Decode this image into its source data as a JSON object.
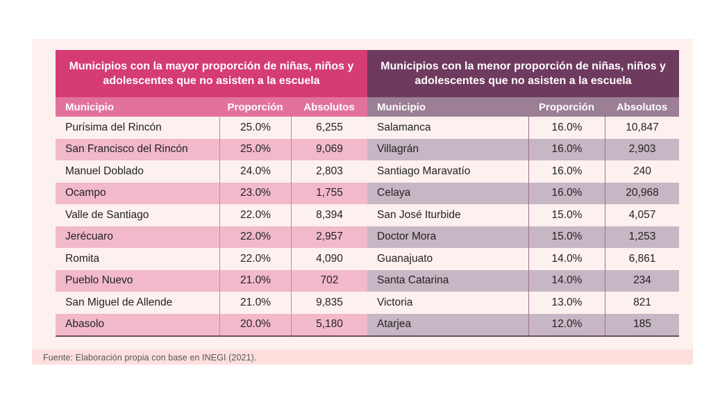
{
  "left_table": {
    "title": "Municipios con la mayor proporción de niñas, niños y adolescentes que no asisten a la escuela",
    "headers": [
      "Municipio",
      "Proporción",
      "Absolutos"
    ],
    "rows": [
      [
        "Purísima del Rincón",
        "25.0%",
        "6,255"
      ],
      [
        "San Francisco del Rincón",
        "25.0%",
        "9,069"
      ],
      [
        "Manuel Doblado",
        "24.0%",
        "2,803"
      ],
      [
        "Ocampo",
        "23.0%",
        "1,755"
      ],
      [
        "Valle de Santiago",
        "22.0%",
        "8,394"
      ],
      [
        "Jerécuaro",
        "22.0%",
        "2,957"
      ],
      [
        "Romita",
        "22.0%",
        "4,090"
      ],
      [
        "Pueblo Nuevo",
        "21.0%",
        "702"
      ],
      [
        "San Miguel de Allende",
        "21.0%",
        "9,835"
      ],
      [
        "Abasolo",
        "20.0%",
        "5,180"
      ]
    ]
  },
  "right_table": {
    "title": "Municipios con la menor proporción de niñas, niños y adolescentes que no asisten a la escuela",
    "headers": [
      "Municipio",
      "Proporción",
      "Absolutos"
    ],
    "rows": [
      [
        "Salamanca",
        "16.0%",
        "10,847"
      ],
      [
        "Villagrán",
        "16.0%",
        "2,903"
      ],
      [
        "Santiago Maravatío",
        "16.0%",
        "240"
      ],
      [
        "Celaya",
        "16.0%",
        "20,968"
      ],
      [
        "San José Iturbide",
        "15.0%",
        "4,057"
      ],
      [
        "Doctor Mora",
        "15.0%",
        "1,253"
      ],
      [
        "Guanajuato",
        "14.0%",
        "6,861"
      ],
      [
        "Santa Catarina",
        "14.0%",
        "234"
      ],
      [
        "Victoria",
        "13.0%",
        "821"
      ],
      [
        "Atarjea",
        "12.0%",
        "185"
      ]
    ]
  },
  "source": "Fuente: Elaboración propia con base en INEGI (2021)."
}
